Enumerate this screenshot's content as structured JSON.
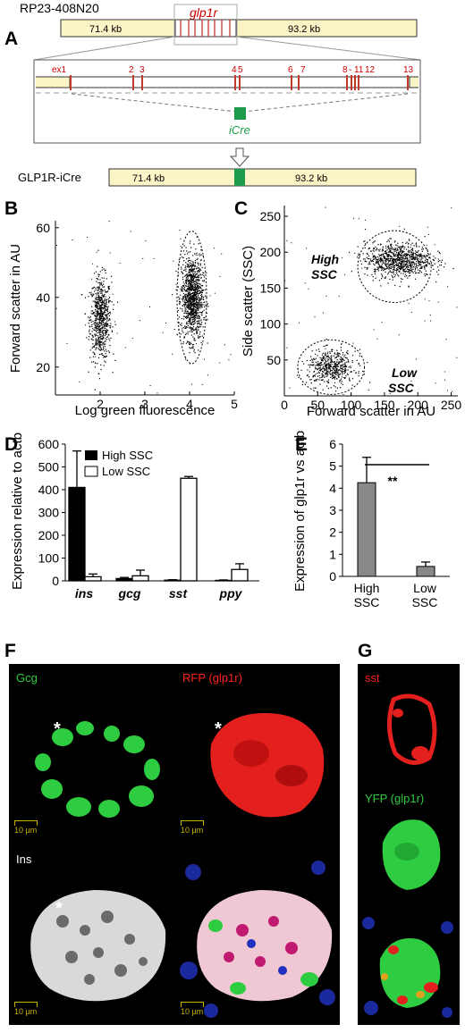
{
  "panelA": {
    "label": "A",
    "bac_name": "RP23-408N20",
    "gene": "glp1r",
    "left_arm": "71.4 kb",
    "right_arm": "93.2 kb",
    "exons": [
      "ex1",
      "2",
      "3",
      "4",
      "5",
      "6",
      "7",
      "8",
      "-",
      "11",
      "12",
      "13"
    ],
    "cassette": "iCre",
    "construct": "GLP1R-iCre",
    "construct_left_arm": "71.4 kb",
    "construct_right_arm": "93.2 kb"
  },
  "panelB": {
    "label": "B",
    "chart_data": {
      "type": "scatter",
      "xlabel": "Log green fluorescence",
      "ylabel": "Forward scatter in AU",
      "xlim": [
        1,
        5
      ],
      "ylim": [
        12,
        62
      ],
      "xticks": [
        "2",
        "3",
        "4",
        "5"
      ],
      "yticks": [
        "20",
        "40",
        "60"
      ],
      "clusters": [
        {
          "center": [
            2.0,
            34
          ],
          "spread": [
            0.12,
            6
          ],
          "n": 700
        },
        {
          "center": [
            4.05,
            40
          ],
          "spread": [
            0.12,
            6
          ],
          "n": 1100
        }
      ],
      "gate": {
        "center": [
          4.05,
          40
        ],
        "radius": [
          0.33,
          19
        ]
      }
    }
  },
  "panelC": {
    "label": "C",
    "chart_data": {
      "type": "scatter",
      "xlabel": "Forward scatter in AU",
      "ylabel": "Side scatter (SSC)",
      "xlim": [
        0,
        260
      ],
      "ylim": [
        0,
        265
      ],
      "xticks": [
        "0",
        "50",
        "100",
        "150",
        "200",
        "250"
      ],
      "yticks": [
        "50",
        "100",
        "150",
        "200",
        "250"
      ],
      "clusters": [
        {
          "center": [
            170,
            190
          ],
          "spread": [
            25,
            12
          ],
          "n": 900
        },
        {
          "center": [
            70,
            40
          ],
          "spread": [
            18,
            12
          ],
          "n": 500
        }
      ],
      "gates": [
        {
          "label": "High SSC",
          "center": [
            165,
            180
          ],
          "radius": [
            55,
            50
          ]
        },
        {
          "label": "Low SSC",
          "center": [
            70,
            40
          ],
          "radius": [
            50,
            38
          ]
        }
      ],
      "gate_labels": [
        "High",
        "SSC",
        "Low",
        "SSC"
      ]
    }
  },
  "panelD": {
    "label": "D",
    "chart_data": {
      "type": "bar",
      "categories": [
        "ins",
        "gcg",
        "sst",
        "ppy"
      ],
      "series": [
        {
          "name": "High SSC",
          "values": [
            410,
            10,
            3,
            2
          ],
          "errors": [
            160,
            5,
            2,
            2
          ],
          "color": "#000000"
        },
        {
          "name": "Low SSC",
          "values": [
            18,
            22,
            450,
            50
          ],
          "errors": [
            12,
            25,
            8,
            25
          ],
          "color": "#ffffff"
        }
      ],
      "ylabel": "Expression relative to actb",
      "ylim": [
        0,
        600
      ],
      "yticks": [
        "0",
        "100",
        "200",
        "300",
        "400",
        "500",
        "600"
      ]
    }
  },
  "panelE": {
    "label": "E",
    "chart_data": {
      "type": "bar",
      "categories": [
        "High SSC",
        "Low SSC"
      ],
      "category_lines": [
        [
          "High",
          "SSC"
        ],
        [
          "Low",
          "SSC"
        ]
      ],
      "values": [
        4.25,
        0.45
      ],
      "errors": [
        1.15,
        0.2
      ],
      "color": "#888888",
      "ylabel": "Expression of glp1r vs actb",
      "ylim": [
        0,
        6
      ],
      "yticks": [
        "0",
        "1",
        "2",
        "3",
        "4",
        "5",
        "6"
      ],
      "significance": "**"
    }
  },
  "panelF": {
    "label": "F",
    "channels": [
      {
        "label": "Gcg",
        "color": "#2ecc40"
      },
      {
        "label": "RFP (glp1r)",
        "color": "#ff2020"
      },
      {
        "label": "Ins",
        "color": "#ffffff"
      },
      {
        "label": "",
        "color": "#ffffff"
      }
    ],
    "scalebar": "10 µm",
    "asterisk": "*"
  },
  "panelG": {
    "label": "G",
    "channels": [
      {
        "label": "sst",
        "color": "#ff2020"
      },
      {
        "label": "YFP (glp1r)",
        "color": "#2ecc40"
      }
    ]
  }
}
